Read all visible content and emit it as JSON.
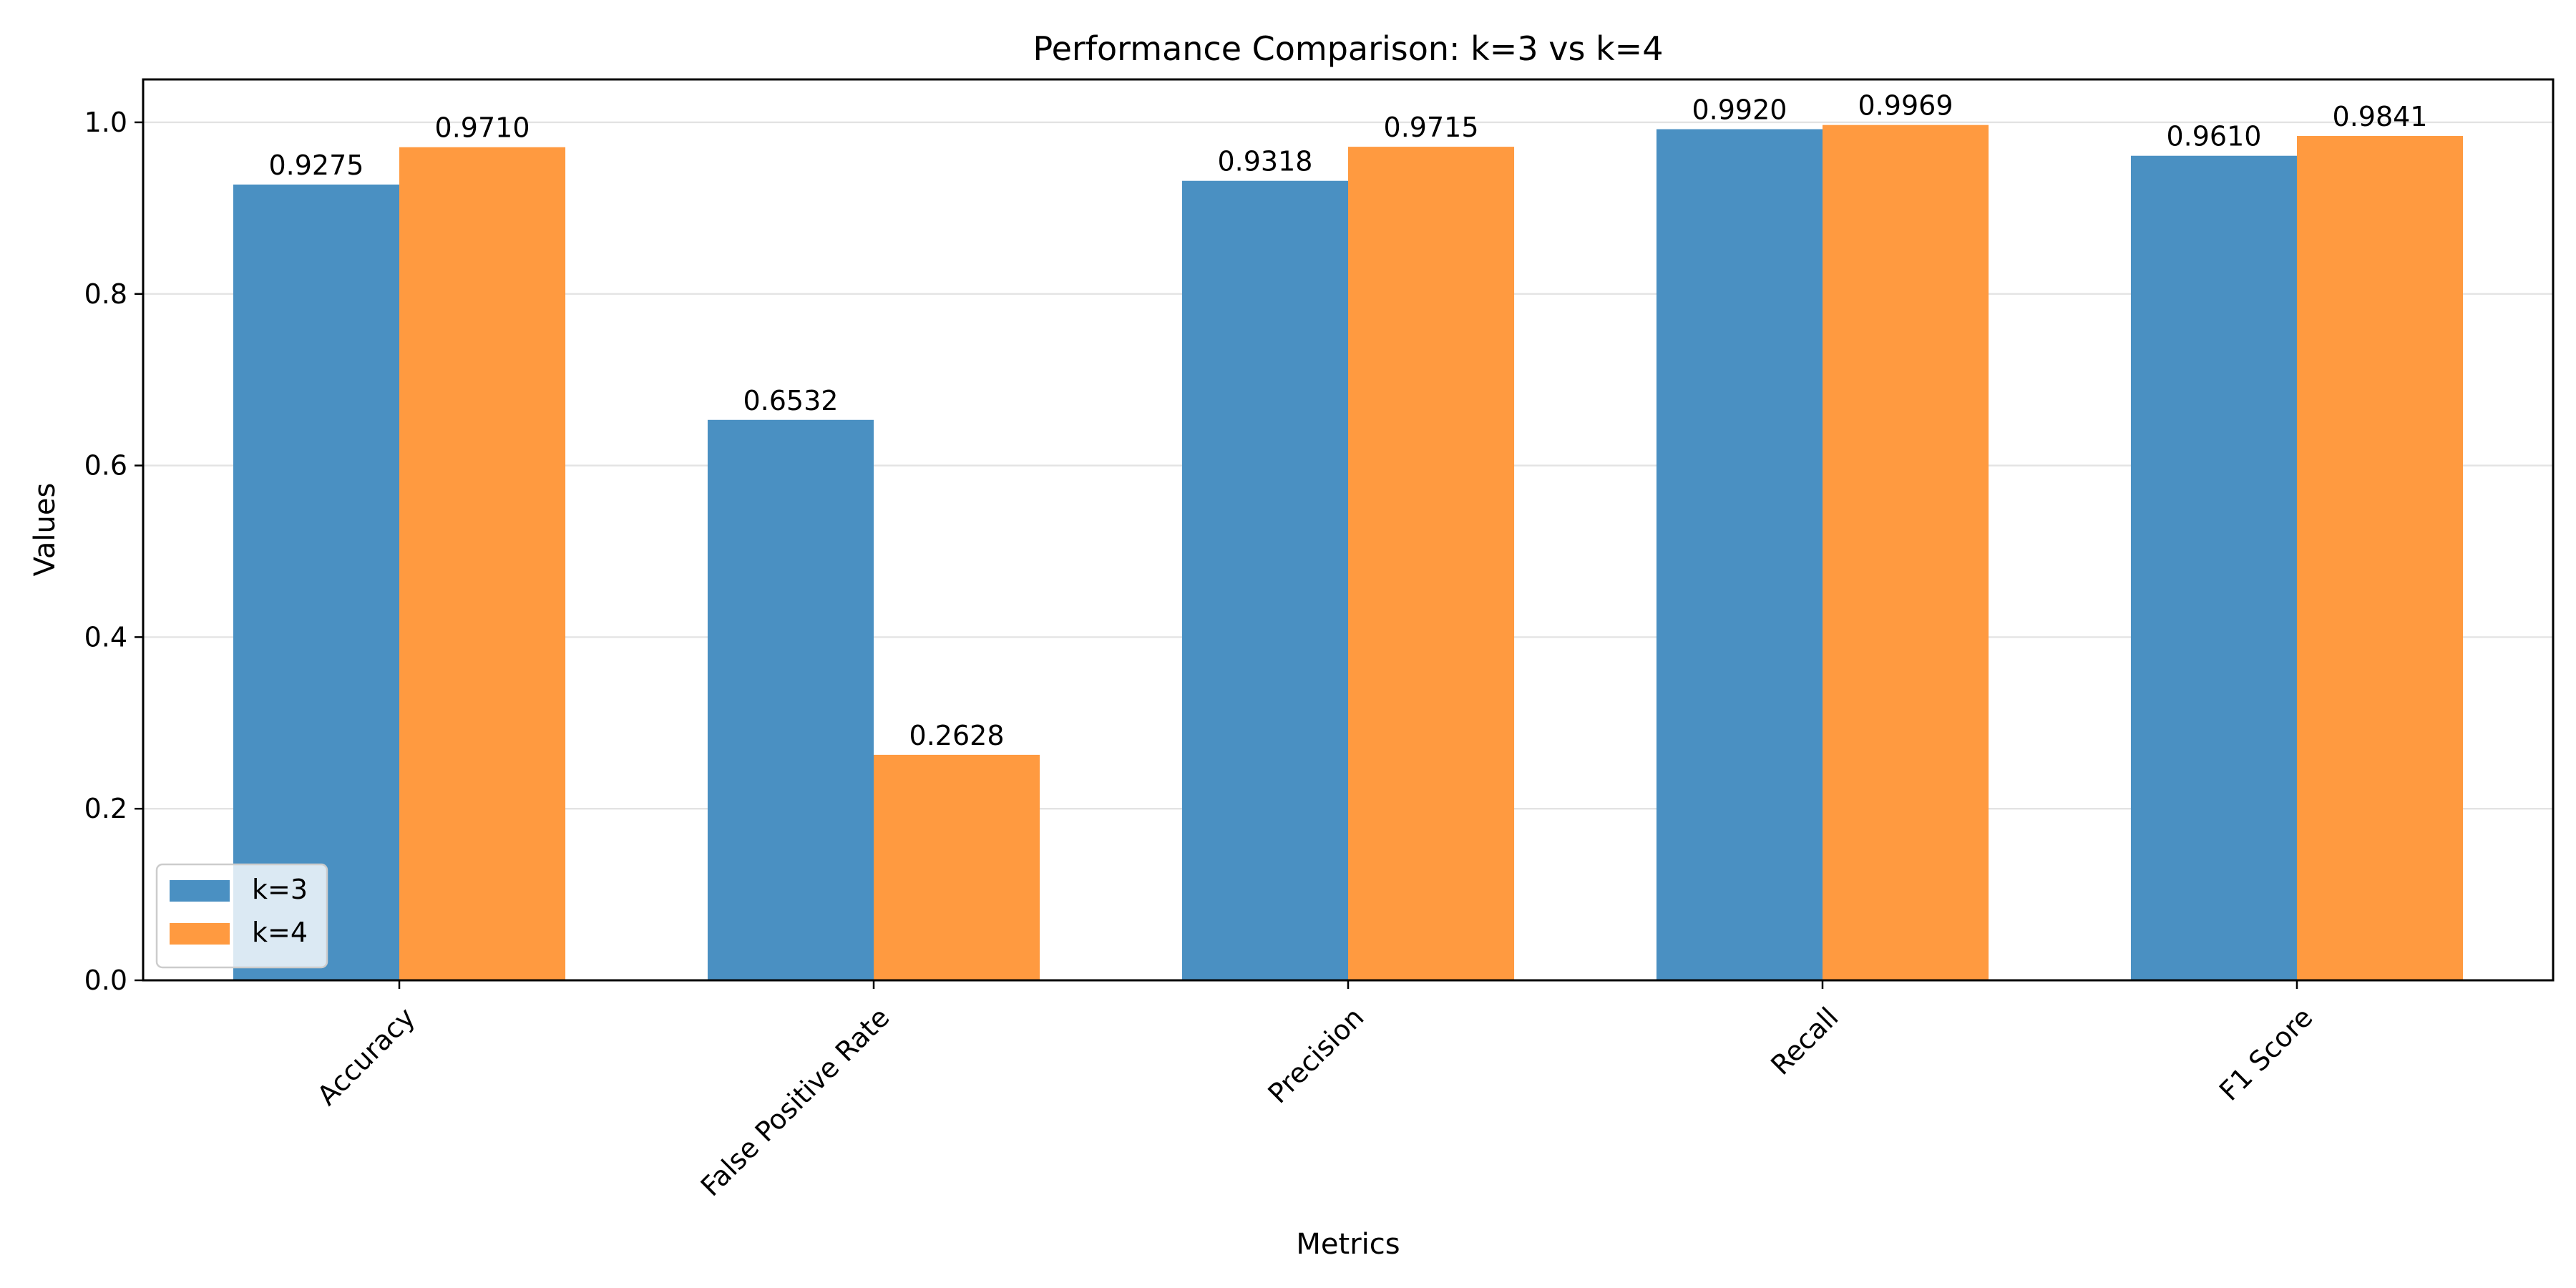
{
  "chart_data": {
    "type": "bar",
    "title": "Performance Comparison: k=3 vs k=4",
    "xlabel": "Metrics",
    "ylabel": "Values",
    "categories": [
      "Accuracy",
      "False Positive Rate",
      "Precision",
      "Recall",
      "F1 Score"
    ],
    "series": [
      {
        "name": "k=3",
        "color": "#4a90c2",
        "values": [
          0.9275,
          0.6532,
          0.9318,
          0.992,
          0.961
        ],
        "labels": [
          "0.9275",
          "0.6532",
          "0.9318",
          "0.9920",
          "0.9610"
        ]
      },
      {
        "name": "k=4",
        "color": "#ff9a40",
        "values": [
          0.971,
          0.2628,
          0.9715,
          0.9969,
          0.9841
        ],
        "labels": [
          "0.9710",
          "0.2628",
          "0.9715",
          "0.9969",
          "0.9841"
        ]
      }
    ],
    "ylim": [
      0,
      1.05
    ],
    "yticks": [
      0.0,
      0.2,
      0.4,
      0.6,
      0.8,
      1.0
    ],
    "ytick_labels": [
      "0.0",
      "0.2",
      "0.4",
      "0.6",
      "0.8",
      "1.0"
    ],
    "grid": "y",
    "legend_position": "lower-left"
  }
}
